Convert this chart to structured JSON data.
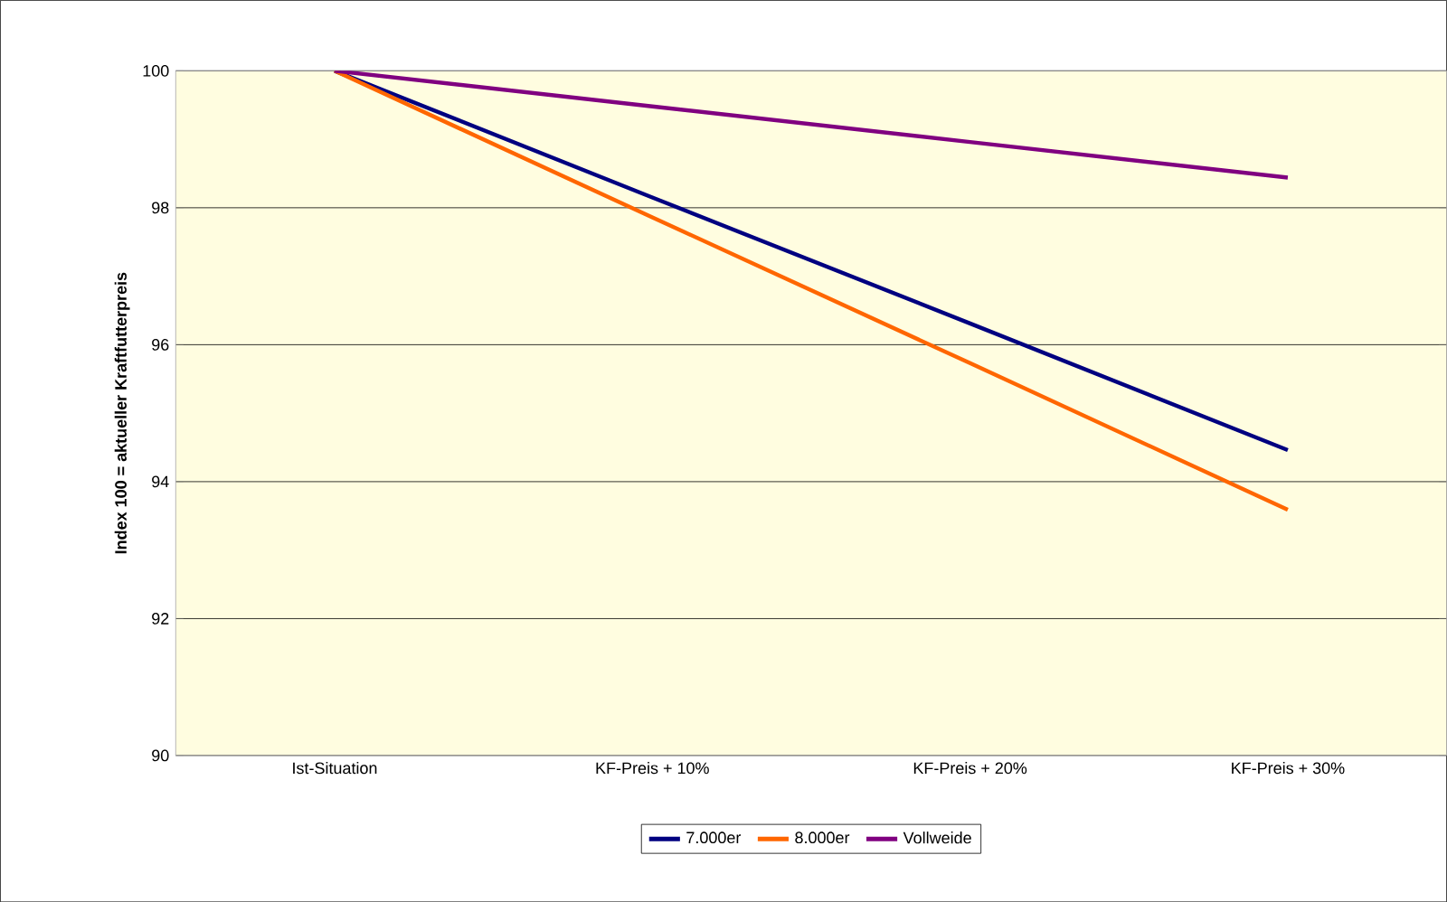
{
  "chart_data": {
    "type": "line",
    "ylabel": "Index 100 = aktueller Kraftfutterpreis",
    "categories": [
      "Ist-Situation",
      "KF-Preis + 10%",
      "KF-Preis + 20%",
      "KF-Preis + 30%"
    ],
    "series": [
      {
        "name": "7.000er",
        "color": "#000080",
        "values": [
          100,
          98.15,
          96.31,
          94.46
        ]
      },
      {
        "name": "8.000er",
        "color": "#ff6600",
        "values": [
          100,
          97.86,
          95.73,
          93.59
        ]
      },
      {
        "name": "Vollweide",
        "color": "#800080",
        "values": [
          100,
          99.48,
          98.96,
          98.44
        ]
      }
    ],
    "ylim": [
      90,
      100
    ],
    "yticks": [
      90,
      92,
      94,
      96,
      98,
      100
    ],
    "grid": "y",
    "legend": "bottom",
    "marker": "none",
    "line_style": "solid"
  }
}
